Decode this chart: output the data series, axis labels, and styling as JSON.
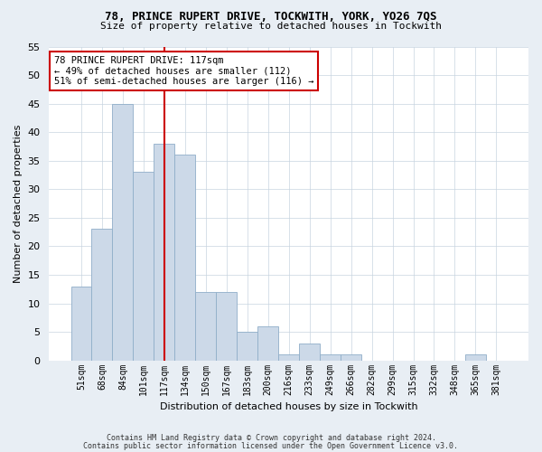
{
  "title1": "78, PRINCE RUPERT DRIVE, TOCKWITH, YORK, YO26 7QS",
  "title2": "Size of property relative to detached houses in Tockwith",
  "xlabel": "Distribution of detached houses by size in Tockwith",
  "ylabel": "Number of detached properties",
  "bar_labels": [
    "51sqm",
    "68sqm",
    "84sqm",
    "101sqm",
    "117sqm",
    "134sqm",
    "150sqm",
    "167sqm",
    "183sqm",
    "200sqm",
    "216sqm",
    "233sqm",
    "249sqm",
    "266sqm",
    "282sqm",
    "299sqm",
    "315sqm",
    "332sqm",
    "348sqm",
    "365sqm",
    "381sqm"
  ],
  "bar_values": [
    13,
    23,
    45,
    33,
    38,
    36,
    12,
    12,
    5,
    6,
    1,
    3,
    1,
    1,
    0,
    0,
    0,
    0,
    0,
    1,
    0
  ],
  "bar_color": "#ccd9e8",
  "bar_edgecolor": "#90aec8",
  "vline_x": 4,
  "vline_color": "#cc0000",
  "annotation_text": "78 PRINCE RUPERT DRIVE: 117sqm\n← 49% of detached houses are smaller (112)\n51% of semi-detached houses are larger (116) →",
  "annotation_box_color": "#ffffff",
  "annotation_box_edgecolor": "#cc0000",
  "ylim": [
    0,
    55
  ],
  "yticks": [
    0,
    5,
    10,
    15,
    20,
    25,
    30,
    35,
    40,
    45,
    50,
    55
  ],
  "footer1": "Contains HM Land Registry data © Crown copyright and database right 2024.",
  "footer2": "Contains public sector information licensed under the Open Government Licence v3.0.",
  "bg_color": "#e8eef4",
  "plot_bg_color": "#ffffff",
  "grid_color": "#c8d4e0"
}
